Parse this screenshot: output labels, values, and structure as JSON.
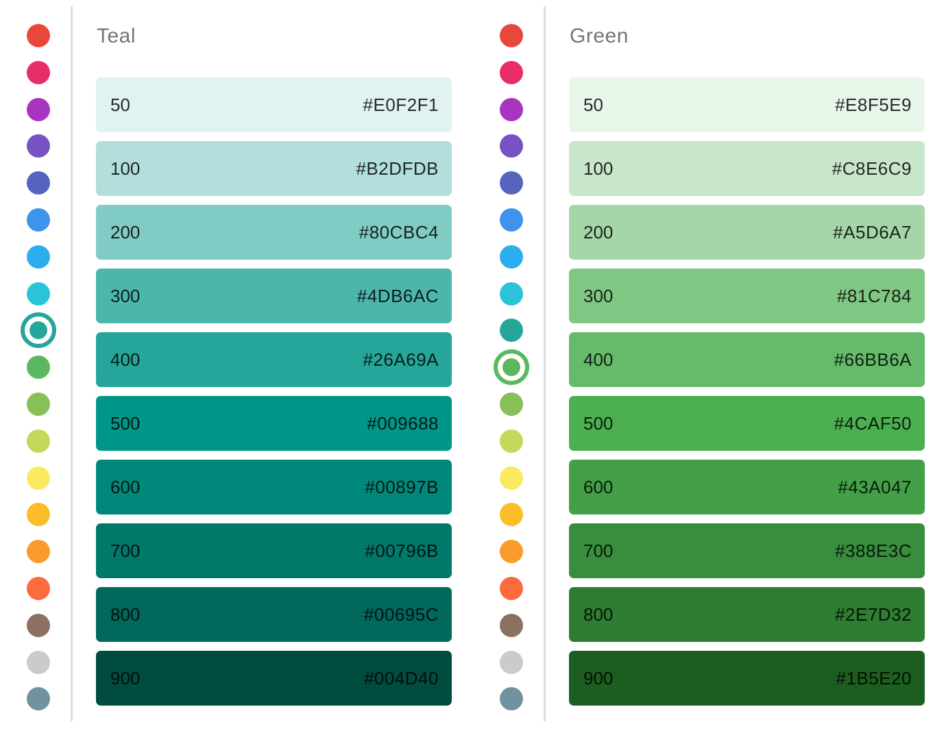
{
  "colors": {
    "background": "#FFFFFF",
    "divider": "#DDDDDD",
    "title_text": "#757575",
    "swatch_text": "rgba(0,0,0,0.83)"
  },
  "main_colors": [
    {
      "name": "red",
      "color": "#E8483C"
    },
    {
      "name": "pink",
      "color": "#E92D66"
    },
    {
      "name": "purple",
      "color": "#A834BF"
    },
    {
      "name": "deep-purple",
      "color": "#7852C4"
    },
    {
      "name": "indigo",
      "color": "#5564BE"
    },
    {
      "name": "blue",
      "color": "#3E93EC"
    },
    {
      "name": "light-blue",
      "color": "#2BAEF0"
    },
    {
      "name": "cyan",
      "color": "#2BC3D7"
    },
    {
      "name": "teal",
      "color": "#26A69A"
    },
    {
      "name": "green",
      "color": "#5CB860"
    },
    {
      "name": "light-green",
      "color": "#87C056"
    },
    {
      "name": "lime",
      "color": "#C2D95C"
    },
    {
      "name": "yellow",
      "color": "#FBE95F"
    },
    {
      "name": "amber",
      "color": "#FBBD28"
    },
    {
      "name": "orange",
      "color": "#F89B2A"
    },
    {
      "name": "deep-orange",
      "color": "#FB6B3C"
    },
    {
      "name": "brown",
      "color": "#8C7062"
    },
    {
      "name": "grey",
      "color": "#CBCBCB"
    },
    {
      "name": "blue-grey",
      "color": "#7292A1"
    }
  ],
  "panels": [
    {
      "title": "Teal",
      "selected_main_color": "teal",
      "selected_index": 8,
      "shades": [
        {
          "label": "50",
          "hex": "#E0F2F1"
        },
        {
          "label": "100",
          "hex": "#B2DFDB"
        },
        {
          "label": "200",
          "hex": "#80CBC4"
        },
        {
          "label": "300",
          "hex": "#4DB6AC"
        },
        {
          "label": "400",
          "hex": "#26A69A"
        },
        {
          "label": "500",
          "hex": "#009688"
        },
        {
          "label": "600",
          "hex": "#00897B"
        },
        {
          "label": "700",
          "hex": "#00796B"
        },
        {
          "label": "800",
          "hex": "#00695C"
        },
        {
          "label": "900",
          "hex": "#004D40"
        }
      ]
    },
    {
      "title": "Green",
      "selected_main_color": "green",
      "selected_index": 9,
      "shades": [
        {
          "label": "50",
          "hex": "#E8F5E9"
        },
        {
          "label": "100",
          "hex": "#C8E6C9"
        },
        {
          "label": "200",
          "hex": "#A5D6A7"
        },
        {
          "label": "300",
          "hex": "#81C784"
        },
        {
          "label": "400",
          "hex": "#66BB6A"
        },
        {
          "label": "500",
          "hex": "#4CAF50"
        },
        {
          "label": "600",
          "hex": "#43A047"
        },
        {
          "label": "700",
          "hex": "#388E3C"
        },
        {
          "label": "800",
          "hex": "#2E7D32"
        },
        {
          "label": "900",
          "hex": "#1B5E20"
        }
      ]
    }
  ]
}
